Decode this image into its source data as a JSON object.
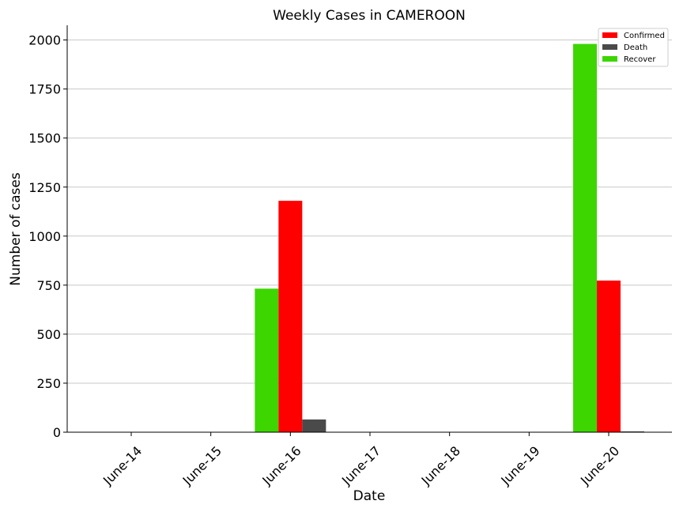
{
  "chart_data": {
    "type": "bar",
    "title": "Weekly Cases in CAMEROON",
    "xlabel": "Date",
    "ylabel": "Number of cases",
    "categories": [
      "June-14",
      "June-15",
      "June-16",
      "June-17",
      "June-18",
      "June-19",
      "June-20"
    ],
    "series": [
      {
        "name": "Recover",
        "color": "#3dd600",
        "values": [
          0,
          0,
          732,
          0,
          0,
          0,
          1980
        ]
      },
      {
        "name": "Confirmed",
        "color": "#ff0000",
        "values": [
          0,
          0,
          1180,
          0,
          0,
          0,
          773
        ]
      },
      {
        "name": "Death",
        "color": "#4a4a4a",
        "values": [
          0,
          0,
          65,
          0,
          0,
          0,
          4
        ]
      }
    ],
    "legend_order": [
      "Confirmed",
      "Death",
      "Recover"
    ],
    "ylim": [
      0,
      2075
    ],
    "yticks": [
      0,
      250,
      500,
      750,
      1000,
      1250,
      1500,
      1750,
      2000
    ],
    "grid": "horizontal",
    "legend_position": "top-right"
  }
}
